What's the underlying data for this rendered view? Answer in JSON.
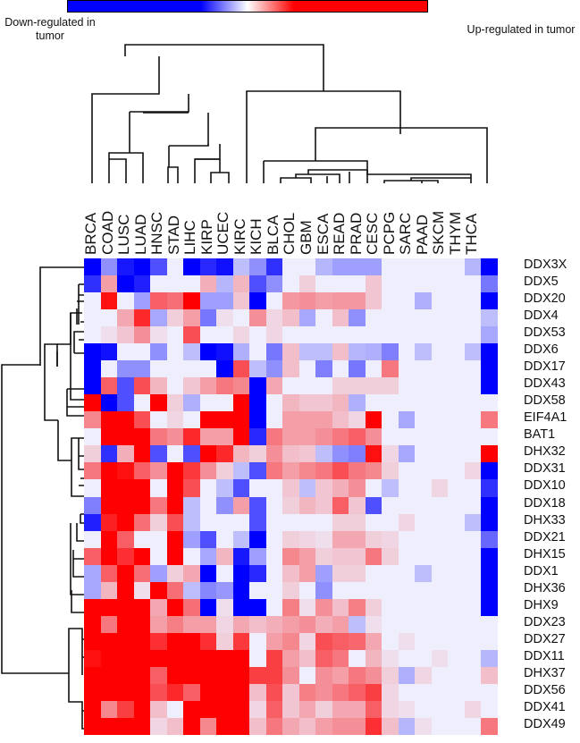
{
  "chart_data": {
    "type": "heatmap",
    "title": "",
    "legend": {
      "low_label": "Down-regulated in tumor",
      "high_label": "Up-regulated in tumor",
      "colors": {
        "low": "#0000ff",
        "mid": "#ffffff",
        "high": "#ff0000",
        "zero_cell": "#eeeefc"
      },
      "value_range": [
        -3,
        3
      ]
    },
    "columns": [
      "BRCA",
      "COAD",
      "LUSC",
      "LUAD",
      "HNSC",
      "STAD",
      "LIHC",
      "KIRP",
      "UCEC",
      "KIRC",
      "KICH",
      "BLCA",
      "CHOL",
      "GBM",
      "ESCA",
      "READ",
      "PRAD",
      "CESC",
      "PCPG",
      "SARC",
      "PAAD",
      "SKCM",
      "THYM",
      "THCA"
    ],
    "rows": [
      "DDX3X",
      "DDX5",
      "DDX20",
      "DDX4",
      "DDX53",
      "DDX6",
      "DDX17",
      "DDX43",
      "DDX58",
      "EIF4A1",
      "BAT1",
      "DHX32",
      "DDX31",
      "DDX10",
      "DDX18",
      "DHX33",
      "DDX21",
      "DHX15",
      "DDX1",
      "DHX36",
      "DHX9",
      "DDX23",
      "DDX27",
      "DDX11",
      "DHX37",
      "DDX56",
      "DDX41",
      "DDX49"
    ],
    "values": [
      [
        -3,
        -1.2,
        -2.7,
        -3,
        -2,
        0,
        -3,
        -2.5,
        -2.8,
        -0.6,
        -1.2,
        -2.4,
        0,
        0,
        -0.7,
        -1,
        -1,
        -1,
        0,
        0,
        0,
        0,
        0,
        -0.7,
        -3
      ],
      [
        -2.4,
        1,
        -3,
        -2.6,
        0,
        0,
        0,
        0.8,
        -0.7,
        0.7,
        -2,
        -1.2,
        0,
        0.4,
        0,
        0,
        0,
        0.5,
        0,
        0,
        0,
        0,
        0,
        0,
        -1.5
      ],
      [
        0,
        2.8,
        0,
        -1,
        1.8,
        1.6,
        3,
        -1,
        -1,
        0.5,
        -3,
        0,
        1.1,
        1.2,
        1,
        1.1,
        1.1,
        0.5,
        0,
        0,
        -0.8,
        0,
        0,
        0,
        -3
      ],
      [
        0,
        0,
        0.9,
        2.5,
        -0.9,
        0.4,
        1,
        -1.5,
        0.2,
        0,
        1.2,
        0.3,
        0.6,
        -0.9,
        0,
        0.6,
        -1.2,
        0,
        0,
        0,
        0,
        0,
        0,
        0,
        -0.6
      ],
      [
        0,
        0.2,
        0.5,
        1.2,
        0.2,
        0,
        2,
        0,
        0,
        0.3,
        0,
        0.3,
        0,
        0,
        0,
        0,
        0,
        0,
        0,
        0,
        0,
        0,
        0,
        0,
        -0.9
      ],
      [
        -3,
        -2.8,
        0,
        0,
        -1.2,
        0,
        -0.6,
        -3,
        -2.8,
        -0.8,
        0,
        -1.5,
        0.6,
        -0.6,
        -0.6,
        0.6,
        -0.7,
        -0.8,
        -1.4,
        0,
        -0.6,
        0,
        0,
        -0.6,
        -3
      ],
      [
        -3,
        0,
        -1.2,
        -1.2,
        0,
        0,
        0,
        0,
        -3,
        2,
        -0.6,
        -1.2,
        0.6,
        0,
        -1.4,
        0,
        -1.5,
        0,
        1.5,
        0,
        0,
        0,
        0,
        0,
        -3
      ],
      [
        -3,
        1.8,
        -2,
        2,
        0.7,
        0,
        0.5,
        1,
        1.5,
        1.3,
        -3,
        0.9,
        0,
        0,
        0,
        0.4,
        0.4,
        0.4,
        0.4,
        0,
        0,
        0,
        0,
        0,
        -3
      ],
      [
        3,
        -3,
        -2,
        0,
        3,
        0.4,
        -0.8,
        0,
        0,
        3,
        -3,
        0,
        0.7,
        0.5,
        0.5,
        0.7,
        -0.8,
        0,
        0,
        0,
        0,
        0,
        0,
        0,
        0
      ],
      [
        1.3,
        3,
        3,
        2,
        0,
        0.3,
        0,
        3,
        3,
        3,
        -3,
        0,
        1,
        1,
        1,
        0.6,
        0.3,
        3,
        0,
        -0.9,
        0,
        0,
        0,
        0,
        1.5
      ],
      [
        0,
        3,
        3,
        3,
        1.5,
        1.2,
        2.5,
        1,
        1,
        3,
        -2.5,
        1.5,
        1,
        1,
        1.2,
        1.5,
        1.8,
        1.2,
        0,
        0,
        0,
        0,
        0,
        0,
        0
      ],
      [
        0.4,
        -2.4,
        0.8,
        3,
        -2,
        0,
        -2,
        3,
        2.5,
        0.7,
        0.4,
        1.2,
        0.6,
        0.5,
        -0.6,
        -1.2,
        -1.4,
        2.8,
        0.3,
        -0.9,
        0,
        0,
        0,
        0,
        3
      ],
      [
        1.5,
        3,
        2.8,
        1.8,
        1.2,
        3,
        2.3,
        1.2,
        0.4,
        -0.6,
        -2,
        1.5,
        1,
        1.3,
        1.5,
        2,
        1.5,
        1.3,
        0.4,
        0,
        0,
        0,
        0,
        0.3,
        -3
      ],
      [
        0,
        3,
        3,
        3,
        0,
        3,
        2,
        0,
        -0.6,
        -2,
        0,
        0,
        0.5,
        -0.6,
        0.5,
        0.8,
        1.2,
        0,
        -0.6,
        0,
        0,
        0.3,
        0,
        0,
        -2.4
      ],
      [
        -1.4,
        3,
        3,
        3,
        1.5,
        3,
        -0.6,
        0,
        -1.2,
        1,
        -2,
        0,
        0.4,
        0.7,
        0.5,
        1.8,
        0.5,
        -2,
        0,
        0,
        0,
        0,
        0,
        0,
        -3
      ],
      [
        -2.6,
        2.6,
        3,
        1.6,
        0.4,
        2,
        -0.6,
        0,
        0,
        0,
        -2,
        0,
        0,
        0,
        0,
        0.4,
        0.4,
        0,
        0,
        0.3,
        0,
        0,
        0,
        -0.6,
        -3
      ],
      [
        0,
        3,
        1.8,
        0,
        0,
        3,
        -1,
        -2,
        0,
        -0.6,
        -3,
        0,
        0.4,
        0.3,
        0.2,
        0.9,
        0.9,
        0.4,
        0.3,
        0,
        0,
        0,
        0,
        0,
        -1.7
      ],
      [
        1.8,
        3,
        2.4,
        3,
        0,
        3,
        0,
        -0.9,
        0.7,
        -2.7,
        -1,
        0,
        1.3,
        1,
        0.4,
        0.5,
        0.5,
        1.5,
        0.4,
        0,
        0,
        0,
        0,
        0,
        -3
      ],
      [
        -0.9,
        1.8,
        3,
        1.6,
        -1,
        0.4,
        0.9,
        -3,
        0,
        -3,
        -2.5,
        0,
        0.6,
        1,
        -1,
        0.4,
        0.4,
        0,
        0,
        0,
        -0.6,
        0,
        0,
        0,
        -3
      ],
      [
        -0.9,
        0.7,
        3,
        0.2,
        3,
        1.6,
        -0.6,
        -1.3,
        -1.1,
        -3,
        0,
        0,
        0.4,
        0,
        -1.2,
        0,
        0,
        0,
        0,
        0,
        0,
        0,
        0,
        0,
        -3
      ],
      [
        3,
        3,
        3,
        3,
        0.9,
        3,
        1.6,
        -3,
        0.2,
        -3,
        -3,
        0,
        1.4,
        0.2,
        1.2,
        0.6,
        1.4,
        0.4,
        0,
        0,
        0,
        0,
        0,
        0,
        -3
      ],
      [
        3,
        1.5,
        3,
        3,
        1,
        1.4,
        1,
        1,
        0.3,
        0.9,
        0.6,
        0.8,
        1,
        1.2,
        0.8,
        1,
        -0.6,
        0.2,
        0,
        0,
        0,
        0,
        0,
        0,
        0
      ],
      [
        3,
        3,
        3,
        3,
        2.4,
        3,
        3,
        2.4,
        0.4,
        2.3,
        0,
        1,
        1.3,
        0.3,
        2,
        1.8,
        1.7,
        0.9,
        0,
        0.2,
        0,
        0,
        0,
        0,
        0
      ],
      [
        2.8,
        3,
        3,
        3,
        3,
        3,
        3,
        3,
        3,
        3,
        0,
        2.2,
        1,
        0.6,
        1.8,
        1.5,
        0,
        0.7,
        0.2,
        0,
        0,
        0.2,
        0,
        0,
        -0.7
      ],
      [
        3,
        3,
        3,
        3,
        1.8,
        3,
        3,
        3,
        3,
        3,
        2.2,
        2.2,
        1.2,
        0,
        1.2,
        1,
        1.5,
        1.2,
        0.4,
        -0.8,
        0.3,
        0,
        0,
        0,
        0.6
      ],
      [
        3,
        3,
        3,
        3,
        2,
        2.5,
        1.8,
        3,
        3,
        3,
        0.6,
        2,
        0.5,
        1.4,
        1.2,
        1.5,
        1.8,
        2.2,
        0.3,
        0,
        0,
        0,
        0,
        0,
        0
      ],
      [
        3,
        1.3,
        2.2,
        3,
        0.6,
        0,
        3,
        3,
        3,
        3,
        0.3,
        1.8,
        0.5,
        0.9,
        0.4,
        0.9,
        0.9,
        1.8,
        0.3,
        0.2,
        0,
        0,
        0,
        0.3,
        0
      ],
      [
        3,
        3,
        3,
        3,
        0.3,
        0.6,
        3,
        1.3,
        3,
        3,
        0.6,
        1.5,
        0.9,
        0.6,
        1,
        1.2,
        1.2,
        2.4,
        0.6,
        -0.7,
        0.2,
        0,
        0,
        0,
        1.5
      ]
    ],
    "column_order_note": "24 visible column labels; grid drawn with 25 columns, last column (unlabeled) shown as THCA-adjacent strip",
    "dendrograms": {
      "columns": true,
      "rows": true
    },
    "grid": false,
    "legend_position": "top"
  },
  "legend": {
    "down_label": "Down-regulated in tumor",
    "up_label": "Up-regulated in tumor"
  }
}
